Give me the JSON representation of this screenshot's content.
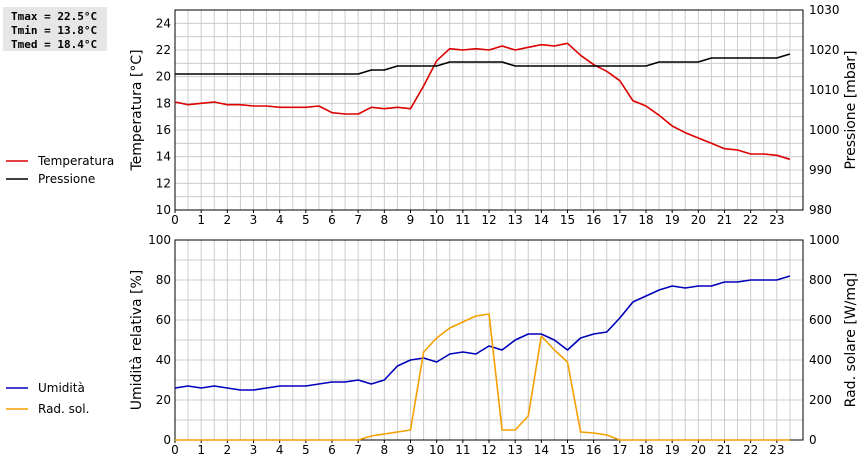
{
  "stats": {
    "tmax": "Tmax = 22.5°C",
    "tmin": "Tmin = 13.8°C",
    "tmed": "Tmed = 18.4°C"
  },
  "colors": {
    "temperature": "#dd0000",
    "pressure": "#000000",
    "humidity": "#0000bb",
    "solar": "#f5a000",
    "grid": "#cccccc"
  },
  "chart_data": [
    {
      "type": "line",
      "x_ticks": [
        "0",
        "1",
        "2",
        "3",
        "4",
        "5",
        "6",
        "7",
        "8",
        "9",
        "10",
        "11",
        "12",
        "13",
        "14",
        "15",
        "16",
        "17",
        "18",
        "19",
        "20",
        "21",
        "22",
        "23"
      ],
      "xlim": [
        0,
        24
      ],
      "ylabel_left": "Temperatura [°C]",
      "ylabel_right": "Pressione [mbar]",
      "ylim_left": [
        10,
        25
      ],
      "y_ticks_left": [
        "10",
        "12",
        "14",
        "16",
        "18",
        "20",
        "22",
        "24"
      ],
      "ylim_right": [
        980,
        1030
      ],
      "y_ticks_right": [
        "980",
        "990",
        "1000",
        "1010",
        "1020",
        "1030"
      ],
      "grid": true,
      "legend": [
        "Temperatura",
        "Pressione"
      ],
      "series": [
        {
          "name": "Temperatura",
          "axis": "left",
          "x": [
            0,
            0.5,
            1,
            1.5,
            2,
            2.5,
            3,
            3.5,
            4,
            4.5,
            5,
            5.5,
            6,
            6.5,
            7,
            7.5,
            8,
            8.5,
            9,
            9.5,
            10,
            10.5,
            11,
            11.5,
            12,
            12.5,
            13,
            13.5,
            14,
            14.5,
            15,
            15.5,
            16,
            16.5,
            17,
            17.5,
            18,
            18.5,
            19,
            19.5,
            20,
            20.5,
            21,
            21.5,
            22,
            22.5,
            23,
            23.5
          ],
          "y": [
            18.1,
            17.9,
            18.0,
            18.1,
            17.9,
            17.9,
            17.8,
            17.8,
            17.7,
            17.7,
            17.7,
            17.8,
            17.3,
            17.2,
            17.2,
            17.7,
            17.6,
            17.7,
            17.6,
            19.3,
            21.2,
            22.1,
            22.0,
            22.1,
            22.0,
            22.3,
            22.0,
            22.2,
            22.4,
            22.3,
            22.5,
            21.6,
            20.9,
            20.4,
            19.7,
            18.2,
            17.8,
            17.1,
            16.3,
            15.8,
            15.4,
            15.0,
            14.6,
            14.5,
            14.2,
            14.2,
            14.1,
            13.8
          ]
        },
        {
          "name": "Pressione",
          "axis": "right",
          "x": [
            0,
            1,
            2,
            3,
            4,
            5,
            6,
            7,
            7.5,
            8,
            8.5,
            9,
            9.5,
            10,
            10.5,
            11,
            11.5,
            12,
            12.5,
            13,
            13.5,
            14,
            14.5,
            15,
            15.5,
            16,
            16.5,
            17,
            17.5,
            18,
            18.5,
            19,
            19.5,
            20,
            20.5,
            21,
            21.5,
            22,
            22.5,
            23,
            23.5
          ],
          "y": [
            1014,
            1014,
            1014,
            1014,
            1014,
            1014,
            1014,
            1014,
            1015,
            1015,
            1016,
            1016,
            1016,
            1016,
            1017,
            1017,
            1017,
            1017,
            1017,
            1016,
            1016,
            1016,
            1016,
            1016,
            1016,
            1016,
            1016,
            1016,
            1016,
            1016,
            1017,
            1017,
            1017,
            1017,
            1018,
            1018,
            1018,
            1018,
            1018,
            1018,
            1019
          ]
        }
      ]
    },
    {
      "type": "line",
      "x_ticks": [
        "0",
        "1",
        "2",
        "3",
        "4",
        "5",
        "6",
        "7",
        "8",
        "9",
        "10",
        "11",
        "12",
        "13",
        "14",
        "15",
        "16",
        "17",
        "18",
        "19",
        "20",
        "21",
        "22",
        "23"
      ],
      "xlim": [
        0,
        24
      ],
      "ylabel_left": "Umidità relativa [%]",
      "ylabel_right": "Rad. solare [W/mq]",
      "ylim_left": [
        0,
        100
      ],
      "y_ticks_left": [
        "0",
        "20",
        "40",
        "60",
        "80",
        "100"
      ],
      "ylim_right": [
        0,
        1000
      ],
      "y_ticks_right": [
        "0",
        "200",
        "400",
        "600",
        "800",
        "1000"
      ],
      "grid": true,
      "legend": [
        "Umidità",
        "Rad. sol."
      ],
      "series": [
        {
          "name": "Umidità",
          "axis": "left",
          "x": [
            0,
            0.5,
            1,
            1.5,
            2,
            2.5,
            3,
            3.5,
            4,
            4.5,
            5,
            5.5,
            6,
            6.5,
            7,
            7.5,
            8,
            8.5,
            9,
            9.5,
            10,
            10.5,
            11,
            11.5,
            12,
            12.5,
            13,
            13.5,
            14,
            14.5,
            15,
            15.5,
            16,
            16.5,
            17,
            17.5,
            18,
            18.5,
            19,
            19.5,
            20,
            20.5,
            21,
            21.5,
            22,
            22.5,
            23,
            23.5
          ],
          "y": [
            26,
            27,
            26,
            27,
            26,
            25,
            25,
            26,
            27,
            27,
            27,
            28,
            29,
            29,
            30,
            28,
            30,
            37,
            40,
            41,
            39,
            43,
            44,
            43,
            47,
            45,
            50,
            53,
            53,
            50,
            45,
            51,
            53,
            54,
            61,
            69,
            72,
            75,
            77,
            76,
            77,
            77,
            79,
            79,
            80,
            80,
            80,
            82
          ]
        },
        {
          "name": "Rad. sol.",
          "axis": "right",
          "x": [
            0,
            0.5,
            1,
            1.5,
            2,
            2.5,
            3,
            3.5,
            4,
            4.5,
            5,
            5.5,
            6,
            6.5,
            7,
            7.5,
            8,
            8.5,
            9,
            9.5,
            10,
            10.5,
            11,
            11.5,
            12,
            12.5,
            13,
            13.5,
            14,
            14.5,
            15,
            15.5,
            16,
            16.5,
            17,
            17.5,
            18,
            18.5,
            19,
            19.5,
            20,
            20.5,
            21,
            21.5,
            22,
            22.5,
            23,
            23.5
          ],
          "y": [
            0,
            0,
            0,
            0,
            0,
            0,
            0,
            0,
            0,
            0,
            0,
            0,
            0,
            0,
            0,
            20,
            30,
            40,
            50,
            440,
            510,
            560,
            590,
            620,
            630,
            50,
            50,
            120,
            520,
            450,
            390,
            40,
            35,
            25,
            0,
            0,
            0,
            0,
            0,
            0,
            0,
            0,
            0,
            0,
            0,
            0,
            0,
            0
          ]
        }
      ]
    }
  ]
}
